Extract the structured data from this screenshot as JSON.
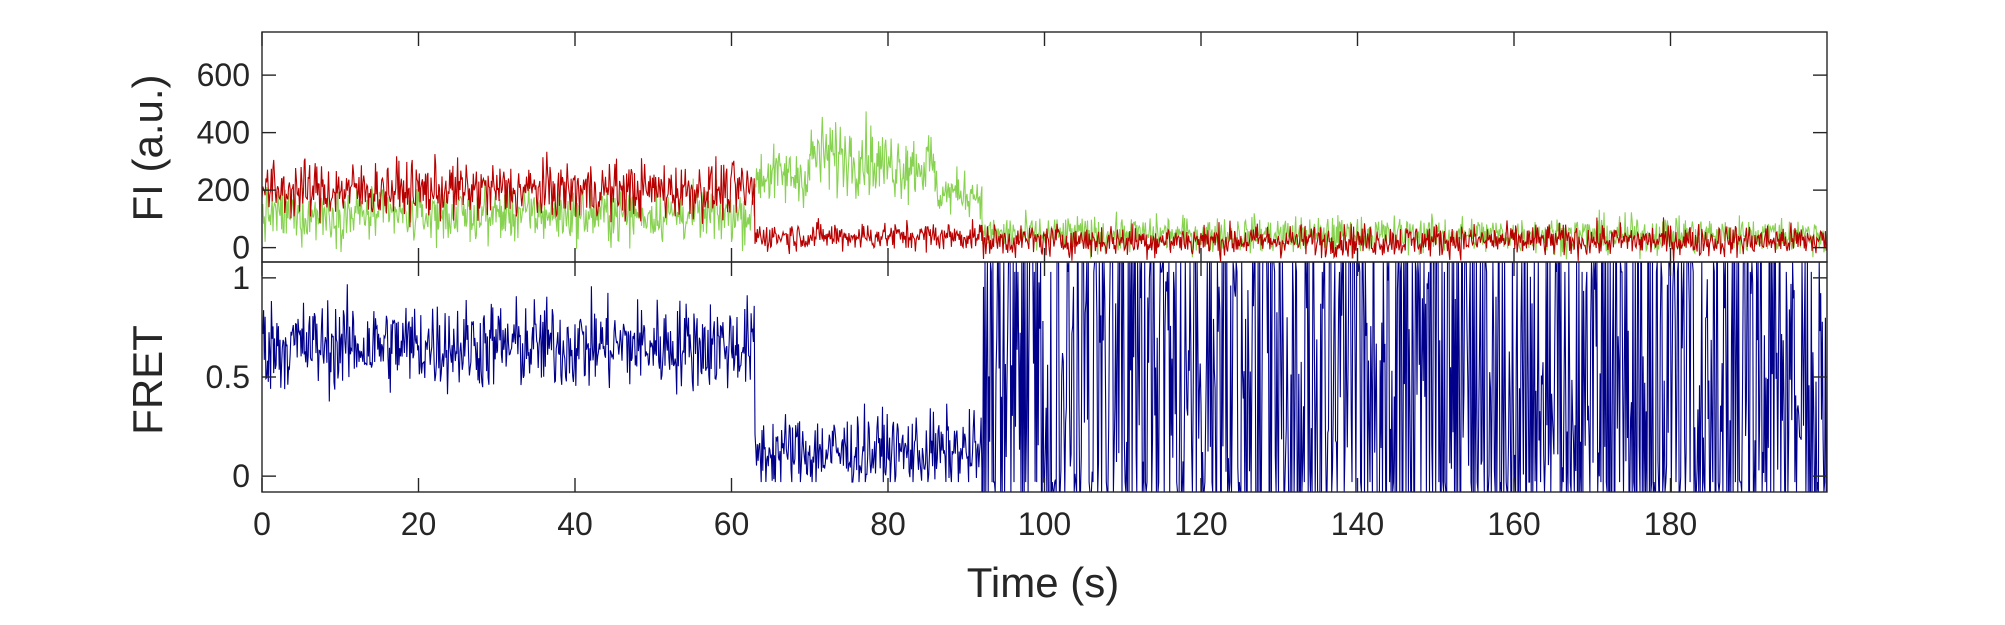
{
  "chart_data": [
    {
      "type": "line",
      "ylabel": "FI (a.u.)",
      "xlim": [
        0,
        200
      ],
      "ylim": [
        -50,
        750
      ],
      "yticks": [
        0,
        200,
        400,
        600
      ],
      "grid": false,
      "colors": {
        "donor": "#88d251",
        "acceptor": "#b80000"
      },
      "series": [
        {
          "color": "#88d251",
          "segments": [
            {
              "x": [
                0,
                63
              ],
              "mean": 115,
              "noise": 65
            },
            {
              "x": [
                63,
                70
              ],
              "mean": 250,
              "noise": 70
            },
            {
              "x": [
                70,
                78
              ],
              "mean": 320,
              "noise": 90
            },
            {
              "x": [
                78,
                86
              ],
              "mean": 290,
              "noise": 85
            },
            {
              "x": [
                86,
                92
              ],
              "mean": 190,
              "noise": 55
            },
            {
              "x": [
                92,
                200
              ],
              "mean": 45,
              "noise": 45
            }
          ]
        },
        {
          "color": "#b80000",
          "segments": [
            {
              "x": [
                0,
                63
              ],
              "mean": 200,
              "noise": 70
            },
            {
              "x": [
                63,
                92
              ],
              "mean": 40,
              "noise": 35
            },
            {
              "x": [
                92,
                200
              ],
              "mean": 25,
              "noise": 40
            }
          ]
        }
      ]
    },
    {
      "type": "line",
      "xlabel": "Time (s)",
      "ylabel": "FRET",
      "xlim": [
        0,
        200
      ],
      "ylim": [
        -0.08,
        1.08
      ],
      "xticks": [
        0,
        20,
        40,
        60,
        80,
        100,
        120,
        140,
        160,
        180
      ],
      "yticks": [
        0,
        0.5,
        1
      ],
      "grid": false,
      "series": [
        {
          "color": "#00008b",
          "segments": [
            {
              "x": [
                0,
                63
              ],
              "mean": 0.66,
              "noise": 0.16
            },
            {
              "x": [
                63,
                92
              ],
              "mean": 0.12,
              "noise": 0.14
            },
            {
              "x": [
                92,
                200
              ],
              "mean": 0.45,
              "noise": 0.55
            }
          ]
        }
      ]
    }
  ]
}
